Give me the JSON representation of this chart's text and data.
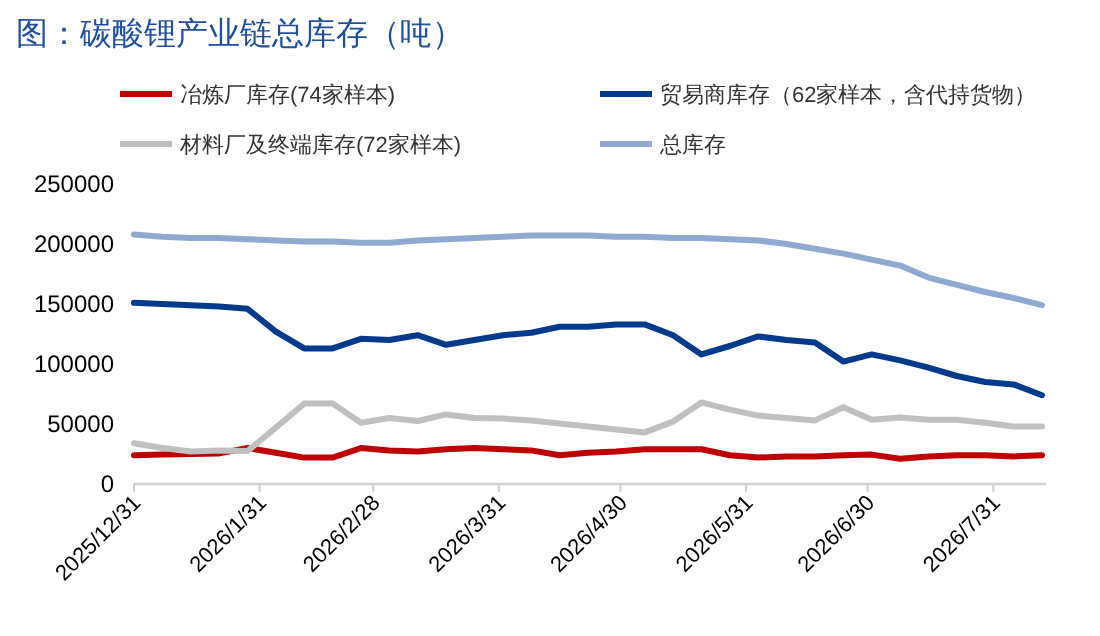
{
  "chart_data": {
    "type": "line",
    "title": "图：碳酸锂产业链总库存（吨）",
    "x": [
      "2025-12-31",
      "2026-01-07",
      "2026-01-14",
      "2026-01-21",
      "2026-01-28",
      "2026-02-04",
      "2026-02-11",
      "2026-02-18",
      "2026-02-25",
      "2026-03-04",
      "2026-03-11",
      "2026-03-18",
      "2026-03-25",
      "2026-04-01",
      "2026-04-08",
      "2026-04-15",
      "2026-04-22",
      "2026-04-29",
      "2026-05-06",
      "2026-05-13",
      "2026-05-20",
      "2026-05-27",
      "2026-06-03",
      "2026-06-10",
      "2026-06-17",
      "2026-06-24",
      "2026-07-01",
      "2026-07-08",
      "2026-07-15",
      "2026-07-22",
      "2026-07-29",
      "2026-08-05",
      "2026-08-12"
    ],
    "series": [
      {
        "name": "冶炼厂库存(74家样本)",
        "color": "#c00000",
        "values": [
          24000,
          24500,
          25000,
          25500,
          30000,
          26000,
          22000,
          22000,
          30000,
          28000,
          27000,
          29000,
          30000,
          29000,
          28000,
          24000,
          26000,
          27000,
          29000,
          29000,
          29000,
          24000,
          22000,
          23000,
          23000,
          24000,
          24500,
          21000,
          23000,
          24000,
          24000,
          23000,
          24000
        ]
      },
      {
        "name": "贸易商库存（62家样本，含代持货物）",
        "color": "#003a8c",
        "values": [
          151000,
          150000,
          149000,
          148000,
          146000,
          127000,
          113000,
          113000,
          121000,
          120000,
          124000,
          116000,
          120000,
          124000,
          126000,
          131000,
          131000,
          133000,
          133000,
          124000,
          108000,
          115000,
          123000,
          120000,
          118000,
          102000,
          108000,
          103000,
          97000,
          90000,
          85000,
          83000,
          74000
        ]
      },
      {
        "name": "材料厂及终端库存(72家样本)",
        "color": "#c0c0c0",
        "values": [
          34000,
          30000,
          27000,
          28000,
          27500,
          47000,
          67000,
          67000,
          51000,
          55000,
          52500,
          58000,
          55000,
          54500,
          53000,
          50500,
          48000,
          45500,
          43000,
          52000,
          68000,
          62000,
          57000,
          55000,
          53000,
          64000,
          53500,
          55500,
          53500,
          53500,
          51000,
          48000,
          48000
        ]
      },
      {
        "name": "总库存",
        "color": "#8eaad2",
        "values": [
          208000,
          206000,
          205000,
          205000,
          204000,
          203000,
          202000,
          202000,
          201000,
          201000,
          203000,
          204000,
          205000,
          206000,
          207000,
          207000,
          207000,
          206000,
          206000,
          205000,
          205000,
          204000,
          203000,
          200000,
          196000,
          192000,
          187000,
          182000,
          172000,
          166000,
          160000,
          155000,
          149000
        ]
      }
    ],
    "xlim": [
      "2025-12-31",
      "2026-08-13"
    ],
    "xticks": [
      {
        "value": "2025-12-31",
        "label": "2025/12/31"
      },
      {
        "value": "2026-01-31",
        "label": "2026/1/31"
      },
      {
        "value": "2026-02-28",
        "label": "2026/2/28"
      },
      {
        "value": "2026-03-31",
        "label": "2026/3/31"
      },
      {
        "value": "2026-04-30",
        "label": "2026/4/30"
      },
      {
        "value": "2026-05-31",
        "label": "2026/5/31"
      },
      {
        "value": "2026-06-30",
        "label": "2026/6/30"
      },
      {
        "value": "2026-07-31",
        "label": "2026/7/31"
      }
    ],
    "ylim": [
      0,
      250000
    ],
    "yticks": [
      0,
      50000,
      100000,
      150000,
      200000,
      250000
    ],
    "grid": false,
    "legend": "top",
    "marker": "none",
    "line_style": "solid"
  }
}
